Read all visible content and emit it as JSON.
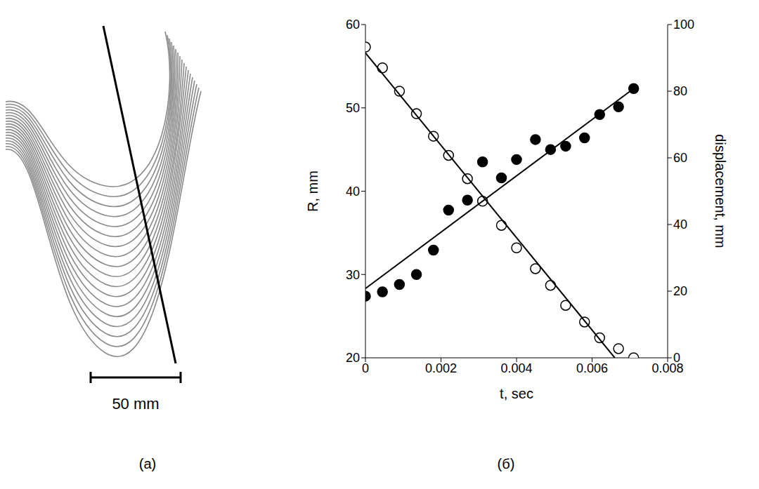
{
  "chart_data": {
    "type": "scatter",
    "xlabel": "t, sec",
    "ylabel": "R, mm",
    "y2label": "displacement, mm",
    "xlim": [
      0,
      0.008
    ],
    "xticks": [
      0,
      0.002,
      0.004,
      0.006,
      0.008
    ],
    "ylim": [
      20,
      60
    ],
    "yticks": [
      20,
      30,
      40,
      50,
      60
    ],
    "y2lim": [
      0,
      100
    ],
    "y2ticks": [
      0,
      20,
      40,
      60,
      80,
      100
    ],
    "series": [
      {
        "type": "scatter",
        "marker": "open_circle",
        "color": "#000000",
        "axis": "y",
        "x": [
          0,
          0.00045,
          0.0009,
          0.00135,
          0.0018,
          0.0022,
          0.0027,
          0.0031,
          0.0036,
          0.004,
          0.0045,
          0.0049,
          0.0053,
          0.0058,
          0.0062,
          0.0067,
          0.0071
        ],
        "values": [
          57.3,
          54.8,
          52.0,
          49.3,
          46.6,
          44.3,
          41.5,
          38.8,
          35.9,
          33.2,
          30.7,
          28.7,
          26.3,
          24.3,
          22.4,
          21.1,
          20.0
        ]
      },
      {
        "type": "scatter",
        "marker": "filled_circle",
        "color": "#000000",
        "axis": "y2",
        "x": [
          0,
          0.00045,
          0.0009,
          0.00135,
          0.0018,
          0.0022,
          0.0027,
          0.0031,
          0.0036,
          0.004,
          0.0045,
          0.0049,
          0.0053,
          0.0058,
          0.0062,
          0.0067,
          0.0071
        ],
        "values": [
          18.5,
          19.8,
          22,
          25,
          32.3,
          44.3,
          47.3,
          58.8,
          54,
          59.5,
          65.5,
          62.5,
          63.5,
          66,
          73,
          75.3,
          80.8
        ]
      },
      {
        "type": "line",
        "line_style": "solid",
        "color": "#000000",
        "axis": "y",
        "x": [
          0,
          0.0066
        ],
        "values": [
          56.6,
          20
        ]
      },
      {
        "type": "line",
        "line_style": "solid",
        "color": "#000000",
        "axis": "y2",
        "x": [
          0,
          0.0071
        ],
        "values": [
          20.8,
          80.8
        ]
      }
    ]
  },
  "panel_a": {
    "scale_bar": "50 mm",
    "label": "(a)"
  },
  "panel_b": {
    "label": "(б)"
  }
}
